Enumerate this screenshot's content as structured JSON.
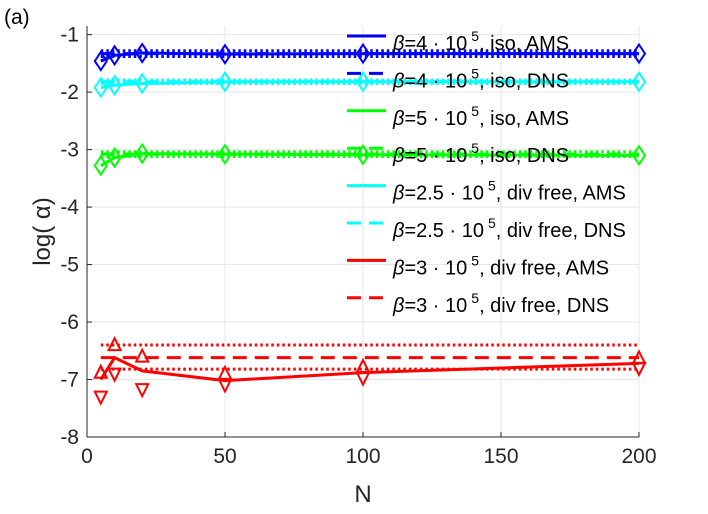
{
  "chart_data": {
    "type": "line",
    "panel_label": "(a)",
    "xlabel": "N",
    "ylabel": "log( α)",
    "xlim": [
      0,
      200
    ],
    "ylim": [
      -8,
      -0.85
    ],
    "xticks": [
      0,
      50,
      100,
      150,
      200
    ],
    "xtick_labels": [
      "0",
      "50",
      "100",
      "150",
      "200"
    ],
    "yticks": [
      -8,
      -7,
      -6,
      -5,
      -4,
      -3,
      -2,
      -1
    ],
    "ytick_labels": [
      "-8",
      "-7",
      "-6",
      "-5",
      "-4",
      "-3",
      "-2",
      "-1"
    ],
    "grid": true,
    "legend_position": "top-right",
    "series": [
      {
        "name": "β=4 · 10 5, iso, AMS",
        "color": "#0000ff",
        "style": "solid",
        "x": [
          5,
          10,
          20,
          50,
          100,
          200
        ],
        "y": [
          -1.46,
          -1.36,
          -1.32,
          -1.34,
          -1.33,
          -1.33
        ],
        "band_upper": [
          -1.38,
          -1.28,
          -1.24,
          -1.28,
          -1.27,
          -1.27
        ],
        "band_lower": [
          -1.55,
          -1.44,
          -1.4,
          -1.4,
          -1.39,
          -1.39
        ]
      },
      {
        "name": "β=4 · 10 5, iso, DNS",
        "color": "#0000ff",
        "style": "dashed",
        "x": [
          5,
          200
        ],
        "y": [
          -1.33,
          -1.33
        ],
        "dotted_upper": -1.28,
        "dotted_lower": -1.38
      },
      {
        "name": "β=5 · 10 5, iso, AMS",
        "color": "#00ff00",
        "style": "solid",
        "x": [
          5,
          10,
          20,
          50,
          100,
          200
        ],
        "y": [
          -3.28,
          -3.14,
          -3.07,
          -3.08,
          -3.09,
          -3.1
        ],
        "band_upper": [
          -3.18,
          -3.06,
          -3.0,
          -3.02,
          -3.03,
          -3.04
        ],
        "band_lower": [
          -3.4,
          -3.22,
          -3.14,
          -3.14,
          -3.15,
          -3.16
        ]
      },
      {
        "name": "β=5 · 10 5, iso, DNS",
        "color": "#00ff00",
        "style": "dashed",
        "x": [
          5,
          200
        ],
        "y": [
          -3.08,
          -3.08
        ],
        "dotted_upper": -3.04,
        "dotted_lower": -3.12
      },
      {
        "name": "β=2.5 · 10 5, div free, AMS",
        "color": "#00ffff",
        "style": "solid",
        "x": [
          5,
          10,
          20,
          50,
          100,
          200
        ],
        "y": [
          -1.92,
          -1.88,
          -1.85,
          -1.82,
          -1.82,
          -1.82
        ],
        "band_upper": [
          -1.86,
          -1.82,
          -1.8,
          -1.78,
          -1.78,
          -1.78
        ],
        "band_lower": [
          -1.98,
          -1.94,
          -1.9,
          -1.86,
          -1.86,
          -1.86
        ]
      },
      {
        "name": "β=2.5 · 10 5, div free, DNS",
        "color": "#00ffff",
        "style": "dashed",
        "x": [
          5,
          200
        ],
        "y": [
          -1.82,
          -1.82
        ],
        "dotted_upper": -1.79,
        "dotted_lower": -1.85
      },
      {
        "name": "β=3 · 10 5, div free, AMS",
        "color": "#ff0000",
        "style": "solid",
        "x": [
          5,
          10,
          20,
          50,
          100,
          200
        ],
        "y": [
          -7.0,
          -6.62,
          -6.85,
          -7.02,
          -6.88,
          -6.72
        ],
        "band_upper": [
          -6.9,
          -6.42,
          -6.62,
          -6.92,
          -6.8,
          -6.65
        ],
        "band_lower": [
          -7.28,
          -6.88,
          -7.15,
          -7.07,
          -6.95,
          -6.78
        ]
      },
      {
        "name": "β=3 · 10 5, div free, DNS",
        "color": "#ff0000",
        "style": "dashed",
        "x": [
          5,
          200
        ],
        "y": [
          -6.62,
          -6.62
        ],
        "dotted_upper": -6.4,
        "dotted_lower": -6.82
      }
    ],
    "legend": [
      {
        "prefix": "β",
        "text1": "=4 · 10",
        "sup": "5",
        "text2": ", iso, AMS"
      },
      {
        "prefix": "β",
        "text1": "=4 · 10",
        "sup": "5",
        "text2": ", iso, DNS"
      },
      {
        "prefix": "β",
        "text1": "=5 · 10",
        "sup": "5",
        "text2": ", iso, AMS"
      },
      {
        "prefix": "β",
        "text1": "=5 · 10",
        "sup": "5",
        "text2": ", iso, DNS"
      },
      {
        "prefix": "β",
        "text1": "=2.5  · 10",
        "sup": "5",
        "text2": ", div free, AMS"
      },
      {
        "prefix": "β",
        "text1": "=2.5  · 10",
        "sup": "5",
        "text2": ", div free, DNS"
      },
      {
        "prefix": "β",
        "text1": "=3 · 10",
        "sup": "5",
        "text2": ", div free, AMS"
      },
      {
        "prefix": "β",
        "text1": "=3 · 10",
        "sup": "5",
        "text2": ", div free, DNS"
      }
    ]
  }
}
